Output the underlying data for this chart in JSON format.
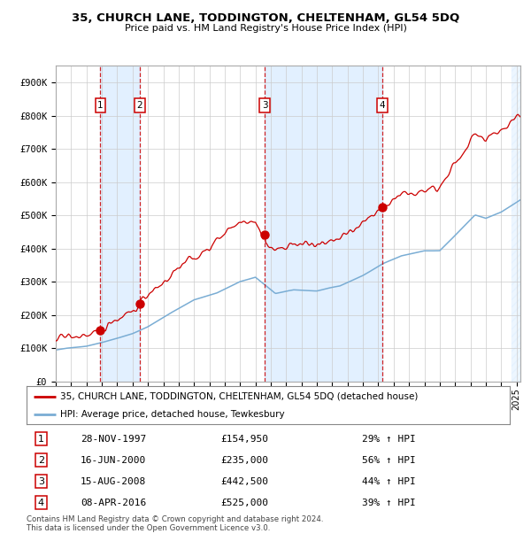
{
  "title": "35, CHURCH LANE, TODDINGTON, CHELTENHAM, GL54 5DQ",
  "subtitle": "Price paid vs. HM Land Registry's House Price Index (HPI)",
  "sale_dates": [
    "1997-11-28",
    "2000-06-16",
    "2008-08-15",
    "2016-04-08"
  ],
  "sale_prices": [
    154950,
    235000,
    442500,
    525000
  ],
  "sale_labels": [
    "1",
    "2",
    "3",
    "4"
  ],
  "legend_property": "35, CHURCH LANE, TODDINGTON, CHELTENHAM, GL54 5DQ (detached house)",
  "legend_hpi": "HPI: Average price, detached house, Tewkesbury",
  "table_rows": [
    [
      "1",
      "28-NOV-1997",
      "£154,950",
      "29% ↑ HPI"
    ],
    [
      "2",
      "16-JUN-2000",
      "£235,000",
      "56% ↑ HPI"
    ],
    [
      "3",
      "15-AUG-2008",
      "£442,500",
      "44% ↑ HPI"
    ],
    [
      "4",
      "08-APR-2016",
      "£525,000",
      "39% ↑ HPI"
    ]
  ],
  "footer": "Contains HM Land Registry data © Crown copyright and database right 2024.\nThis data is licensed under the Open Government Licence v3.0.",
  "property_color": "#cc0000",
  "hpi_color": "#7aadd4",
  "vline_color": "#cc0000",
  "shade_color": "#ddeeff",
  "bg_color": "#ffffff",
  "grid_color": "#cccccc",
  "ylim": [
    0,
    950000
  ],
  "yticks": [
    0,
    100000,
    200000,
    300000,
    400000,
    500000,
    600000,
    700000,
    800000,
    900000
  ],
  "ytick_labels": [
    "£0",
    "£100K",
    "£200K",
    "£300K",
    "£400K",
    "£500K",
    "£600K",
    "£700K",
    "£800K",
    "£900K"
  ]
}
